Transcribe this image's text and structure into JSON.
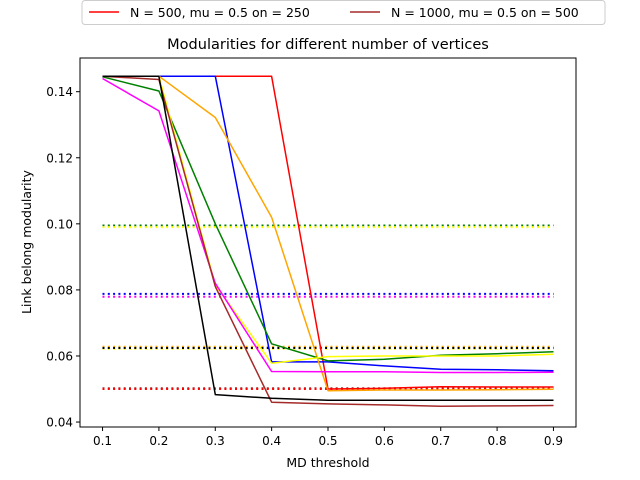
{
  "chart_data": {
    "type": "line",
    "title": "Modularities for different number of vertices",
    "xlabel": "MD threshold",
    "ylabel": "Link belong modularity",
    "xlim": [
      0.06,
      0.94
    ],
    "ylim": [
      0.0385,
      0.1502
    ],
    "x": [
      0.1,
      0.2,
      0.3,
      0.4,
      0.5,
      0.6,
      0.7,
      0.8,
      0.9
    ],
    "xticks": [
      "0.1",
      "0.2",
      "0.3",
      "0.4",
      "0.5",
      "0.6",
      "0.7",
      "0.8",
      "0.9"
    ],
    "yticks": [
      0.04,
      0.06,
      0.08,
      0.1,
      0.12,
      0.14
    ],
    "ytick_labels": [
      "0.04",
      "0.06",
      "0.08",
      "0.10",
      "0.12",
      "0.14"
    ],
    "grid": false,
    "legend_placement": "above plot, two columns",
    "legend": [
      {
        "label": "N = 500, mu = 0.5 on = 250",
        "color": "#ff0000"
      },
      {
        "label": "N = 1000, mu = 0.5 on = 500",
        "color": "#a52a2a"
      }
    ],
    "series": [
      {
        "color": "#ff0000",
        "style": "solid",
        "values": [
          0.1447,
          0.1447,
          0.1447,
          0.1447,
          0.05,
          0.0502,
          0.0507,
          0.0506,
          0.0506
        ]
      },
      {
        "color": "#0000ff",
        "style": "solid",
        "values": [
          0.1447,
          0.1447,
          0.1447,
          0.0582,
          0.0582,
          0.057,
          0.056,
          0.0558,
          0.0555
        ]
      },
      {
        "color": "#ffa500",
        "style": "solid",
        "values": [
          0.1447,
          0.1447,
          0.1322,
          0.102,
          0.0495,
          0.0497,
          0.0497,
          0.0498,
          0.0499
        ]
      },
      {
        "color": "#008000",
        "style": "solid",
        "values": [
          0.1445,
          0.1402,
          0.1,
          0.0637,
          0.0585,
          0.059,
          0.0602,
          0.0607,
          0.0613
        ]
      },
      {
        "color": "#ffff00",
        "style": "solid",
        "values": [
          0.1447,
          0.1447,
          0.0815,
          0.0578,
          0.0598,
          0.06,
          0.06,
          0.06,
          0.0605
        ]
      },
      {
        "color": "#ff00ff",
        "style": "solid",
        "values": [
          0.144,
          0.1342,
          0.082,
          0.0553,
          0.0552,
          0.0552,
          0.055,
          0.055,
          0.0551
        ]
      },
      {
        "color": "#a52a2a",
        "style": "solid",
        "values": [
          0.1447,
          0.1437,
          0.081,
          0.046,
          0.0455,
          0.0452,
          0.0448,
          0.0449,
          0.045
        ]
      },
      {
        "color": "#000000",
        "style": "solid",
        "values": [
          0.1447,
          0.1447,
          0.0483,
          0.0472,
          0.0466,
          0.0466,
          0.0466,
          0.0466,
          0.0466
        ]
      },
      {
        "color": "#008000",
        "style": "dotted",
        "values": [
          0.0995,
          0.0995,
          0.0995,
          0.0995,
          0.0995,
          0.0995,
          0.0995,
          0.0995,
          0.0995
        ]
      },
      {
        "color": "#ffff00",
        "style": "dotted",
        "values": [
          0.099,
          0.099,
          0.099,
          0.099,
          0.099,
          0.099,
          0.099,
          0.099,
          0.099
        ]
      },
      {
        "color": "#0000ff",
        "style": "dotted",
        "values": [
          0.0788,
          0.0788,
          0.0788,
          0.0788,
          0.0788,
          0.0788,
          0.0788,
          0.0788,
          0.0788
        ]
      },
      {
        "color": "#ff00ff",
        "style": "dotted",
        "values": [
          0.0779,
          0.0779,
          0.0779,
          0.0779,
          0.0779,
          0.0779,
          0.0779,
          0.0779,
          0.0779
        ]
      },
      {
        "color": "#ffa500",
        "style": "dotted",
        "values": [
          0.0628,
          0.0628,
          0.0628,
          0.0628,
          0.0628,
          0.0628,
          0.0628,
          0.0628,
          0.0628
        ]
      },
      {
        "color": "#ffff00",
        "style": "dotted",
        "values": [
          0.0622,
          0.0622,
          0.0622,
          0.0622,
          0.0622,
          0.0622,
          0.0622,
          0.0622,
          0.0622
        ]
      },
      {
        "color": "#000000",
        "style": "dotted",
        "values": [
          0.0624,
          0.0624,
          0.0624,
          0.0624,
          0.0624,
          0.0624,
          0.0624,
          0.0624,
          0.0624
        ]
      },
      {
        "color": "#a52a2a",
        "style": "dotted",
        "values": [
          0.0502,
          0.0502,
          0.0502,
          0.0502,
          0.0502,
          0.0502,
          0.0502,
          0.0502,
          0.0502
        ]
      },
      {
        "color": "#ff0000",
        "style": "dotted",
        "values": [
          0.05,
          0.05,
          0.05,
          0.05,
          0.05,
          0.05,
          0.05,
          0.05,
          0.05
        ]
      }
    ]
  }
}
